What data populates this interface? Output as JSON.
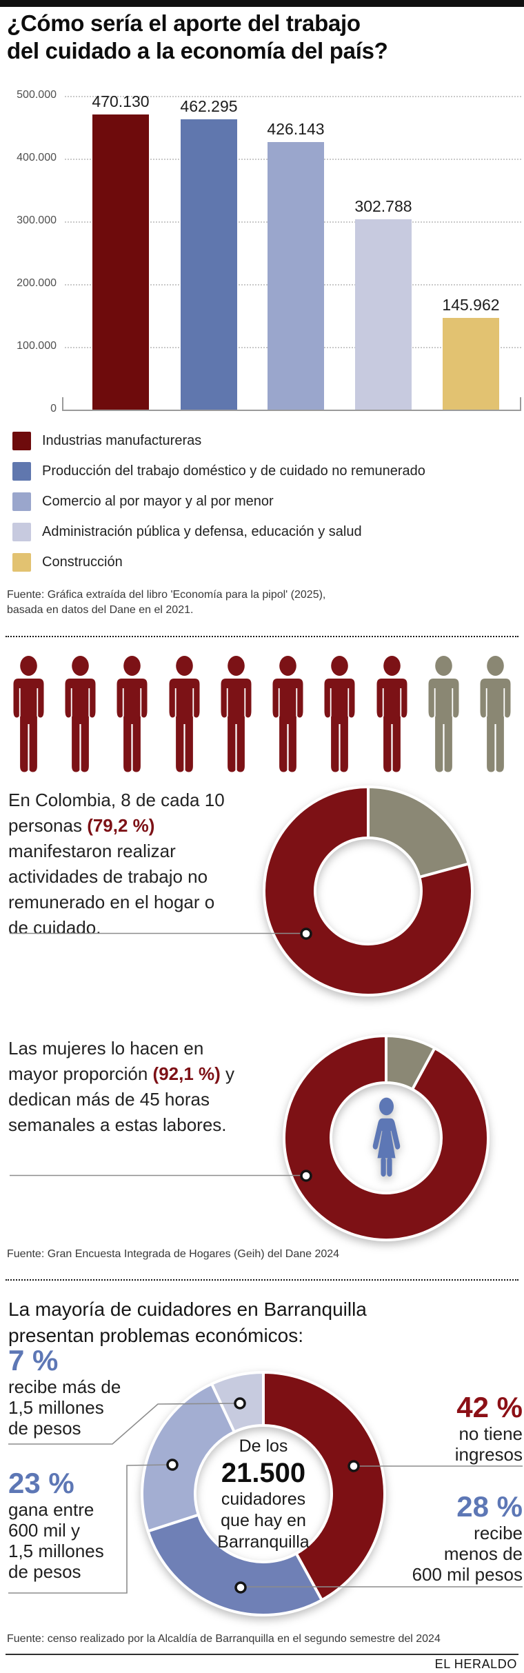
{
  "header": {
    "title_lines": [
      "¿Cómo sería el aporte del trabajo",
      "del cuidado a la economía del país?"
    ]
  },
  "chart_data": [
    {
      "type": "bar",
      "title": "¿Cómo sería el aporte del trabajo del cuidado a la economía del país?",
      "categories": [
        "Industrias manufactureras",
        "Producción del trabajo doméstico y de cuidado no remunerado",
        "Comercio al por mayor y al por menor",
        "Administración pública y defensa, educación y salud",
        "Construcción"
      ],
      "values": [
        470130,
        462295,
        426143,
        302788,
        145962
      ],
      "value_labels": [
        "470.130",
        "462.295",
        "426.143",
        "302.788",
        "145.962"
      ],
      "colors": [
        "#6e0b0c",
        "#6077ae",
        "#9aa6cc",
        "#c7cadf",
        "#e2c271"
      ],
      "ylim": [
        0,
        500000
      ],
      "yticks": [
        "500.000",
        "400.000",
        "300.000",
        "200.000",
        "100.000",
        "0"
      ],
      "grid": true,
      "legend_position": "below"
    },
    {
      "type": "donut",
      "slices": [
        {
          "label": "",
          "value": 20.8,
          "color": "#8b8875"
        },
        {
          "label": "(79,2 %)",
          "value": 79.2,
          "color": "#7d1115"
        }
      ]
    },
    {
      "type": "donut",
      "center_icon": "woman",
      "slices": [
        {
          "label": "",
          "value": 7.9,
          "color": "#8b8875"
        },
        {
          "label": "(92,1 %)",
          "value": 92.1,
          "color": "#7d1115"
        }
      ]
    },
    {
      "type": "donut",
      "center_text": [
        "De los",
        "21.500",
        "cuidadores",
        "que hay en",
        "Barranquilla"
      ],
      "slices": [
        {
          "label": "42 % no tiene ingresos",
          "value": 42,
          "color": "#7d1014"
        },
        {
          "label": "28 % recibe menos de 600 mil pesos",
          "value": 28,
          "color": "#6f80b6"
        },
        {
          "label": "23 % gana entre 600 mil y 1,5 millones de pesos",
          "value": 23,
          "color": "#a3aed2"
        },
        {
          "label": "7 % recibe más de 1,5 millones de pesos",
          "value": 7,
          "color": "#c7cbdf"
        }
      ]
    }
  ],
  "sources": {
    "s1_line1": "Fuente: Gráfica extraída del libro 'Economía para la pipol' (2025),",
    "s1_line2": "basada en datos del Dane en el 2021.",
    "s2": "Fuente: Gran Encuesta Integrada de Hogares (Geih) del Dane 2024",
    "s3": "Fuente: censo realizado por la Alcaldía de Barranquilla en el segundo semestre del 2024"
  },
  "people": {
    "total": 10,
    "active": 8,
    "active_color": "#7c1216",
    "inactive_color": "#8a8773"
  },
  "sections": {
    "colombia": {
      "paragraph": [
        {
          "t": "En Colombia, 8 de cada 10 personas "
        },
        {
          "t": "(79,2 %)",
          "hl": true
        },
        {
          "t": " manifestaron realizar actividades de trabajo no remunerado en el hogar o de cuidado."
        }
      ]
    },
    "mujeres": {
      "paragraph": [
        {
          "t": "Las mujeres lo hacen en mayor proporción "
        },
        {
          "t": "(92,1 %)",
          "hl": true
        },
        {
          "t": " y dedican más de 45 horas semanales a estas labores."
        }
      ]
    },
    "barranquilla": {
      "title_lines": [
        "La mayoría de cuidadores en Barranquilla",
        "presentan problemas económicos:"
      ],
      "callouts": {
        "c7": {
          "pct": "7 %",
          "lines": [
            "recibe más de",
            "1,5 millones",
            "de pesos"
          ]
        },
        "c23": {
          "pct": "23 %",
          "lines": [
            "gana entre",
            "600 mil y",
            "1,5 millones",
            "de pesos"
          ]
        },
        "c42": {
          "pct": "42 %",
          "lines": [
            "no tiene",
            "ingresos"
          ]
        },
        "c28": {
          "pct": "28 %",
          "lines": [
            "recibe",
            "menos de",
            "600 mil pesos"
          ]
        }
      }
    }
  },
  "footer": {
    "brand": "EL HERALDO"
  },
  "palette": {
    "dark_red": "#7d1115",
    "olive_gray": "#8b8875",
    "blue_text": "#5d77b5",
    "red_text": "#8c1016",
    "woman_icon_blue": "#5d77b5"
  }
}
